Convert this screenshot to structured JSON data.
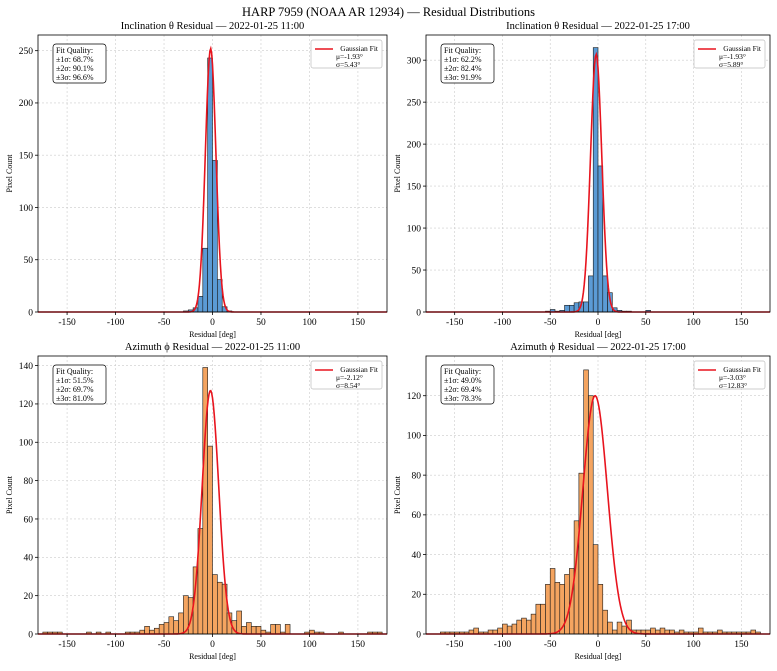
{
  "figure": {
    "title": "HARP 7959 (NOAA AR 12934) — Residual Distributions"
  },
  "colors": {
    "inclination_bar": "#5b9bd5",
    "azimuth_bar": "#f4a460",
    "bar_edge": "#1a1a1a",
    "fit_line": "#e8141e",
    "grid": "#cccccc"
  },
  "chart_data": [
    {
      "type": "bar",
      "title": "Inclination θ Residual — 2022-01-25 11:00",
      "xlabel": "Residual [deg]",
      "ylabel": "Pixel Count",
      "xlim": [
        -180,
        180
      ],
      "ylim": [
        0,
        265
      ],
      "xticks": [
        -150,
        -100,
        -50,
        0,
        50,
        100,
        150
      ],
      "yticks": [
        0,
        50,
        100,
        150,
        200,
        250
      ],
      "bin_width": 5,
      "bin_starts": [
        -30,
        -25,
        -20,
        -15,
        -10,
        -5,
        0,
        5,
        10,
        15
      ],
      "values": [
        1,
        2,
        4,
        15,
        61,
        243,
        145,
        31,
        5,
        1
      ],
      "grid": true,
      "legend": {
        "position": "top-right",
        "title": "Gaussian Fit",
        "mu": "μ=-1.93°",
        "sigma": "σ=5.43°"
      },
      "fit": {
        "mu": -1.93,
        "sigma": 5.43,
        "peak": 252
      },
      "fit_quality": {
        "position": "top-left",
        "lines": [
          "Fit Quality:",
          "±1σ: 68.7%",
          "±2σ: 90.1%",
          "±3σ: 96.6%"
        ]
      }
    },
    {
      "type": "bar",
      "title": "Inclination θ Residual — 2022-01-25 17:00",
      "xlabel": "Residual [deg]",
      "ylabel": "Pixel Count",
      "xlim": [
        -180,
        180
      ],
      "ylim": [
        0,
        330
      ],
      "xticks": [
        -150,
        -100,
        -50,
        0,
        50,
        100,
        150
      ],
      "yticks": [
        0,
        50,
        100,
        150,
        200,
        250,
        300
      ],
      "bin_width": 5,
      "bin_starts": [
        -55,
        -50,
        -45,
        -40,
        -35,
        -30,
        -25,
        -20,
        -15,
        -10,
        -5,
        0,
        5,
        10,
        15,
        20,
        25,
        30,
        50
      ],
      "values": [
        1,
        3,
        1,
        2,
        8,
        8,
        11,
        12,
        12,
        43,
        315,
        174,
        43,
        23,
        5,
        2,
        1,
        1,
        2
      ],
      "grid": true,
      "legend": {
        "position": "top-right",
        "title": "Gaussian Fit",
        "mu": "μ=-1.93°",
        "sigma": "σ=5.89°"
      },
      "fit": {
        "mu": -1.93,
        "sigma": 5.89,
        "peak": 307
      },
      "fit_quality": {
        "position": "top-left",
        "lines": [
          "Fit Quality:",
          "±1σ: 62.2%",
          "±2σ: 82.4%",
          "±3σ: 91.9%"
        ]
      }
    },
    {
      "type": "bar",
      "title": "Azimuth ϕ Residual — 2022-01-25 11:00",
      "xlabel": "Residual [deg]",
      "ylabel": "Pixel Count",
      "xlim": [
        -180,
        180
      ],
      "ylim": [
        0,
        145
      ],
      "xticks": [
        -150,
        -100,
        -50,
        0,
        50,
        100,
        150
      ],
      "yticks": [
        0,
        20,
        40,
        60,
        80,
        100,
        120,
        140
      ],
      "bin_width": 5,
      "bin_starts": [
        -175,
        -170,
        -165,
        -160,
        -130,
        -120,
        -110,
        -90,
        -85,
        -80,
        -75,
        -70,
        -65,
        -60,
        -55,
        -50,
        -45,
        -40,
        -35,
        -30,
        -25,
        -20,
        -15,
        -10,
        -5,
        0,
        5,
        10,
        15,
        20,
        25,
        30,
        35,
        40,
        45,
        50,
        55,
        60,
        65,
        70,
        75,
        95,
        100,
        105,
        110,
        130,
        160,
        165,
        170
      ],
      "values": [
        1,
        1,
        1,
        1,
        1,
        1,
        1,
        1,
        1,
        1,
        2,
        4,
        2,
        3,
        5,
        6,
        9,
        7,
        11,
        20,
        19,
        35,
        55,
        139,
        98,
        31,
        27,
        26,
        11,
        7,
        12,
        4,
        6,
        4,
        4,
        2,
        1,
        5,
        5,
        1,
        5,
        1,
        2,
        1,
        1,
        1,
        1,
        1,
        1
      ],
      "grid": true,
      "legend": {
        "position": "top-right",
        "title": "Gaussian Fit",
        "mu": "μ=-2.12°",
        "sigma": "σ=8.54°"
      },
      "fit": {
        "mu": -2.12,
        "sigma": 8.54,
        "peak": 127
      },
      "fit_quality": {
        "position": "top-left",
        "lines": [
          "Fit Quality:",
          "±1σ: 51.5%",
          "±2σ: 69.7%",
          "±3σ: 81.0%"
        ]
      }
    },
    {
      "type": "bar",
      "title": "Azimuth ϕ Residual — 2022-01-25 17:00",
      "xlabel": "Residual [deg]",
      "ylabel": "Pixel Count",
      "xlim": [
        -180,
        180
      ],
      "ylim": [
        0,
        140
      ],
      "xticks": [
        -150,
        -100,
        -50,
        0,
        50,
        100,
        150
      ],
      "yticks": [
        0,
        20,
        40,
        60,
        80,
        100,
        120
      ],
      "bin_width": 5,
      "bin_starts": [
        -165,
        -160,
        -155,
        -150,
        -145,
        -140,
        -135,
        -130,
        -125,
        -120,
        -115,
        -110,
        -105,
        -100,
        -95,
        -90,
        -85,
        -80,
        -75,
        -70,
        -65,
        -60,
        -55,
        -50,
        -45,
        -40,
        -35,
        -30,
        -25,
        -20,
        -15,
        -10,
        -5,
        0,
        5,
        10,
        15,
        20,
        25,
        30,
        35,
        40,
        45,
        50,
        55,
        60,
        65,
        70,
        75,
        80,
        85,
        90,
        95,
        100,
        105,
        110,
        115,
        120,
        125,
        130,
        135,
        140,
        145,
        150,
        155,
        160,
        165
      ],
      "values": [
        1,
        1,
        1,
        1,
        1,
        1,
        2,
        3,
        1,
        1,
        2,
        2,
        3,
        5,
        4,
        5,
        7,
        8,
        7,
        10,
        15,
        15,
        25,
        33,
        26,
        25,
        30,
        33,
        57,
        81,
        133,
        120,
        45,
        25,
        12,
        6,
        2,
        6,
        4,
        7,
        2,
        2,
        2,
        2,
        3,
        2,
        3,
        2,
        2,
        1,
        2,
        1,
        1,
        1,
        3,
        1,
        1,
        1,
        2,
        1,
        1,
        1,
        1,
        1,
        1,
        2,
        1
      ],
      "grid": true,
      "legend": {
        "position": "top-right",
        "title": "Gaussian Fit",
        "mu": "μ=-3.03°",
        "sigma": "σ=12.83°"
      },
      "fit": {
        "mu": -3.03,
        "sigma": 12.83,
        "peak": 120
      },
      "fit_quality": {
        "position": "top-left",
        "lines": [
          "Fit Quality:",
          "±1σ: 49.0%",
          "±2σ: 69.4%",
          "±3σ: 78.3%"
        ]
      }
    }
  ]
}
